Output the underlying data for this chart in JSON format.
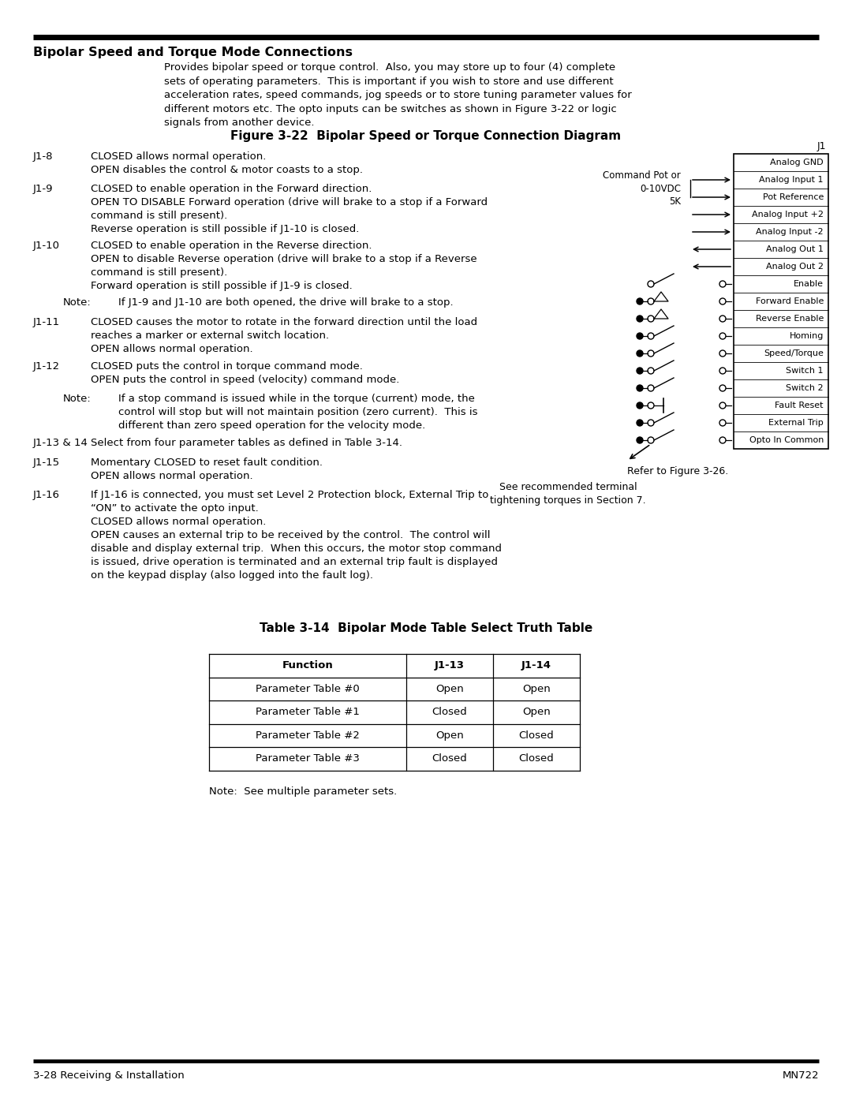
{
  "title_section": "Bipolar Speed and Torque Mode Connections",
  "figure_title": "Figure 3-22  Bipolar Speed or Torque Connection Diagram",
  "table_title": "Table 3-14  Bipolar Mode Table Select Truth Table",
  "intro_text": "Provides bipolar speed or torque control.  Also, you may store up to four (4) complete\nsets of operating parameters.  This is important if you wish to store and use different\nacceleration rates, speed commands, jog speeds or to store tuning parameter values for\ndifferent motors etc. The opto inputs can be switches as shown in Figure 3-22 or logic\nsignals from another device.",
  "j1_labels": [
    "Analog GND",
    "Analog Input 1",
    "Pot Reference",
    "Analog Input +2",
    "Analog Input -2",
    "Analog Out 1",
    "Analog Out 2",
    "Enable",
    "Forward Enable",
    "Reverse Enable",
    "Homing",
    "Speed/Torque",
    "Switch 1",
    "Switch 2",
    "Fault Reset",
    "External Trip",
    "Opto In Common"
  ],
  "left_text_items": [
    {
      "label": "J1-8",
      "text": "CLOSED allows normal operation.\nOPEN disables the control & motor coasts to a stop.",
      "indent": false
    },
    {
      "label": "J1-9",
      "text": "CLOSED to enable operation in the Forward direction.\nOPEN TO DISABLE Forward operation (drive will brake to a stop if a Forward\ncommand is still present).\nReverse operation is still possible if J1-10 is closed.",
      "indent": false
    },
    {
      "label": "J1-10",
      "text": "CLOSED to enable operation in the Reverse direction.\nOPEN to disable Reverse operation (drive will brake to a stop if a Reverse\ncommand is still present).\nForward operation is still possible if J1-9 is closed.",
      "indent": false
    },
    {
      "label": "Note:",
      "text": "If J1-9 and J1-10 are both opened, the drive will brake to a stop.",
      "indent": true
    },
    {
      "label": "J1-11",
      "text": "CLOSED causes the motor to rotate in the forward direction until the load\nreaches a marker or external switch location.\nOPEN allows normal operation.",
      "indent": false
    },
    {
      "label": "J1-12",
      "text": "CLOSED puts the control in torque command mode.\nOPEN puts the control in speed (velocity) command mode.",
      "indent": false
    },
    {
      "label": "Note:",
      "text": "If a stop command is issued while in the torque (current) mode, the\ncontrol will stop but will not maintain position (zero current).  This is\ndifferent than zero speed operation for the velocity mode.",
      "indent": true
    },
    {
      "label": "J1-13 & 14",
      "text": "Select from four parameter tables as defined in Table 3-14.",
      "indent": false
    },
    {
      "label": "J1-15",
      "text": "Momentary CLOSED to reset fault condition.\nOPEN allows normal operation.",
      "indent": false
    },
    {
      "label": "J1-16",
      "text": "If J1-16 is connected, you must set Level 2 Protection block, External Trip to\n“ON” to activate the opto input.\nCLOSED allows normal operation.\nOPEN causes an external trip to be received by the control.  The control will\ndisable and display external trip.  When this occurs, the motor stop command\nis issued, drive operation is terminated and an external trip fault is displayed\non the keypad display (also logged into the fault log).",
      "indent": false
    }
  ],
  "table_headers": [
    "Function",
    "J1-13",
    "J1-14"
  ],
  "table_rows": [
    [
      "Parameter Table #0",
      "Open",
      "Open"
    ],
    [
      "Parameter Table #1",
      "Closed",
      "Open"
    ],
    [
      "Parameter Table #2",
      "Open",
      "Closed"
    ],
    [
      "Parameter Table #3",
      "Closed",
      "Closed"
    ]
  ],
  "table_note": "Note:  See multiple parameter sets.",
  "footer_left": "3-28 Receiving & Installation",
  "footer_right": "MN722",
  "command_pot_label": "Command Pot or\n0-10VDC\n5K",
  "refer_text": "Refer to Figure 3-26.",
  "terminal_text": "See recommended terminal\ntightening torques in Section 7.",
  "bg_color": "#ffffff"
}
